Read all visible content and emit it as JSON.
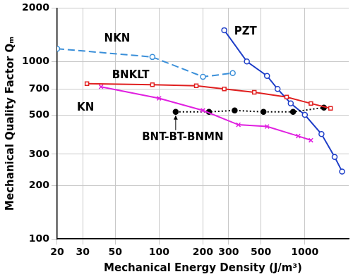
{
  "chart_data": {
    "type": "line",
    "x_label": "Mechanical Energy Density (J/m³)",
    "y_label": "Mechanical Quality Factor Qₘ",
    "log": true,
    "grid": true,
    "xlim": [
      20,
      2000
    ],
    "xticks": [
      20,
      30,
      50,
      100,
      200,
      300,
      500,
      1000
    ],
    "ylim": [
      100,
      2000
    ],
    "yticks": [
      100,
      200,
      300,
      500,
      700,
      1000,
      2000
    ],
    "series": [
      {
        "name": "NKN",
        "color": "#3a8fd9",
        "marker": "circle_open",
        "line_style": "dashed",
        "x": [
          20,
          90,
          200,
          320
        ],
        "values": [
          1180,
          1060,
          820,
          860
        ]
      },
      {
        "name": "BNKLT",
        "color": "#e02020",
        "marker": "square_open",
        "line_style": "solid",
        "x": [
          32,
          90,
          180,
          280,
          450,
          750,
          1100,
          1500
        ],
        "values": [
          750,
          740,
          730,
          700,
          670,
          630,
          580,
          545
        ]
      },
      {
        "name": "KN",
        "color": "#e020e0",
        "marker": "x",
        "line_style": "solid",
        "x": [
          40,
          100,
          200,
          350,
          550,
          900,
          1100
        ],
        "values": [
          720,
          620,
          530,
          440,
          430,
          380,
          360
        ]
      },
      {
        "name": "BNT-BT-BNMN",
        "color": "#000000",
        "marker": "circle_filled",
        "line_style": "dotted",
        "x": [
          130,
          220,
          330,
          520,
          830,
          1350
        ],
        "values": [
          520,
          520,
          530,
          520,
          520,
          550
        ]
      },
      {
        "name": "PZT",
        "color": "#1f3fc8",
        "marker": "circle_open",
        "line_style": "solid",
        "x": [
          280,
          400,
          550,
          650,
          800,
          1000,
          1300,
          1600,
          1800
        ],
        "values": [
          1500,
          1000,
          830,
          700,
          580,
          500,
          390,
          290,
          240
        ]
      }
    ]
  }
}
